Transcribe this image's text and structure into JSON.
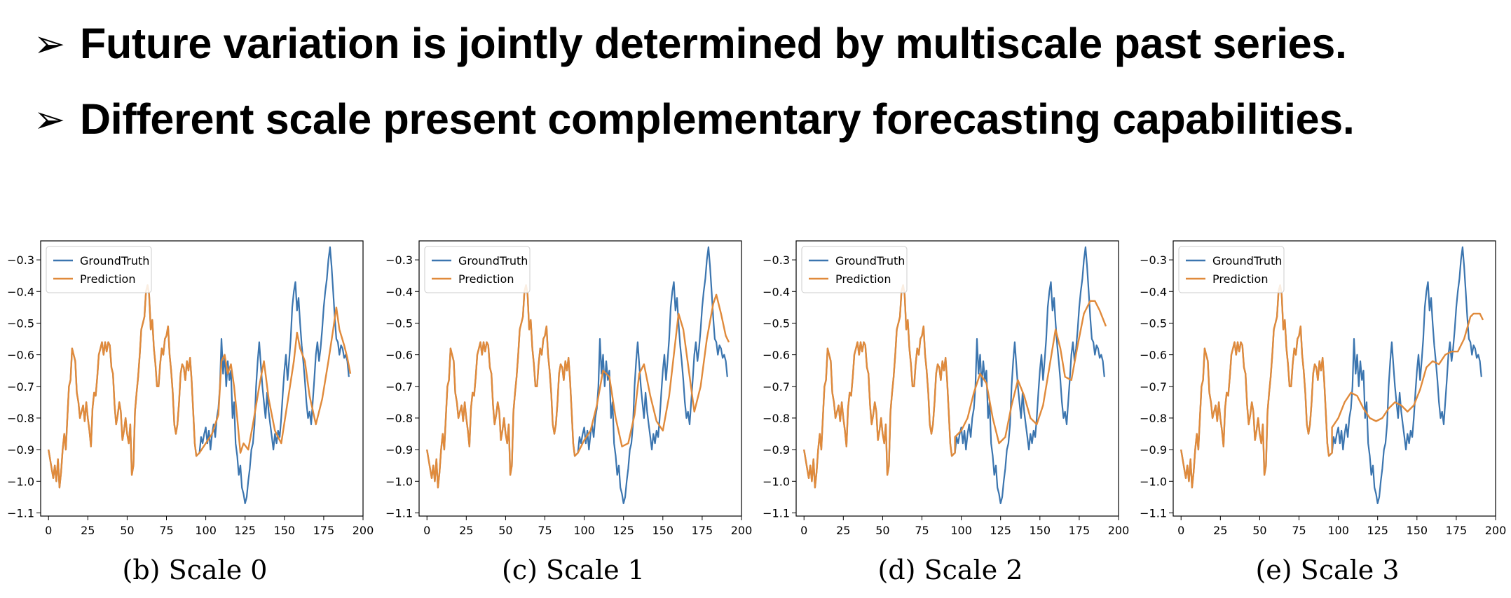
{
  "bullets": [
    {
      "marker": "➢",
      "text": "Future variation is jointly determined by multiscale past series."
    },
    {
      "marker": "➢",
      "text": "Different scale present complementary forecasting capabilities."
    }
  ],
  "colors": {
    "groundtruth": "#3b75af",
    "prediction": "#e08a3b"
  },
  "chart_data": [
    {
      "type": "line",
      "caption": "(b) Scale 0",
      "xlim": [
        -5,
        200
      ],
      "ylim": [
        -1.11,
        -0.24
      ],
      "xticks": [
        0,
        25,
        50,
        75,
        100,
        125,
        150,
        175,
        200
      ],
      "yticks": [
        -0.3,
        -0.4,
        -0.5,
        -0.6,
        -0.7,
        -0.8,
        -0.9,
        -1.0,
        -1.1
      ],
      "legend": "top-left",
      "series": [
        {
          "name": "GroundTruth"
        },
        {
          "name": "Prediction",
          "points": [
            [
              96,
              -0.91
            ],
            [
              100,
              -0.88
            ],
            [
              104,
              -0.85
            ],
            [
              108,
              -0.79
            ],
            [
              110,
              -0.62
            ],
            [
              112,
              -0.6
            ],
            [
              114,
              -0.66
            ],
            [
              116,
              -0.63
            ],
            [
              118,
              -0.7
            ],
            [
              120,
              -0.8
            ],
            [
              122,
              -0.91
            ],
            [
              124,
              -0.88
            ],
            [
              127,
              -0.9
            ],
            [
              130,
              -0.82
            ],
            [
              134,
              -0.7
            ],
            [
              137,
              -0.62
            ],
            [
              140,
              -0.74
            ],
            [
              144,
              -0.84
            ],
            [
              148,
              -0.88
            ],
            [
              152,
              -0.75
            ],
            [
              156,
              -0.62
            ],
            [
              158,
              -0.53
            ],
            [
              160,
              -0.58
            ],
            [
              163,
              -0.62
            ],
            [
              166,
              -0.73
            ],
            [
              170,
              -0.82
            ],
            [
              174,
              -0.74
            ],
            [
              178,
              -0.62
            ],
            [
              181,
              -0.52
            ],
            [
              183,
              -0.45
            ],
            [
              185,
              -0.52
            ],
            [
              188,
              -0.57
            ],
            [
              190,
              -0.61
            ],
            [
              192,
              -0.66
            ]
          ]
        }
      ]
    },
    {
      "type": "line",
      "caption": "(c) Scale 1",
      "xlim": [
        -5,
        200
      ],
      "ylim": [
        -1.11,
        -0.24
      ],
      "xticks": [
        0,
        25,
        50,
        75,
        100,
        125,
        150,
        175,
        200
      ],
      "yticks": [
        -0.3,
        -0.4,
        -0.5,
        -0.6,
        -0.7,
        -0.8,
        -0.9,
        -1.0,
        -1.1
      ],
      "legend": "top-left",
      "series": [
        {
          "name": "GroundTruth"
        },
        {
          "name": "Prediction",
          "points": [
            [
              96,
              -0.91
            ],
            [
              100,
              -0.87
            ],
            [
              104,
              -0.84
            ],
            [
              108,
              -0.76
            ],
            [
              112,
              -0.65
            ],
            [
              116,
              -0.67
            ],
            [
              120,
              -0.8
            ],
            [
              124,
              -0.89
            ],
            [
              128,
              -0.88
            ],
            [
              132,
              -0.79
            ],
            [
              135,
              -0.66
            ],
            [
              138,
              -0.63
            ],
            [
              142,
              -0.73
            ],
            [
              146,
              -0.81
            ],
            [
              150,
              -0.84
            ],
            [
              154,
              -0.73
            ],
            [
              157,
              -0.6
            ],
            [
              160,
              -0.47
            ],
            [
              163,
              -0.52
            ],
            [
              166,
              -0.63
            ],
            [
              170,
              -0.78
            ],
            [
              174,
              -0.7
            ],
            [
              178,
              -0.55
            ],
            [
              182,
              -0.44
            ],
            [
              184,
              -0.41
            ],
            [
              187,
              -0.47
            ],
            [
              190,
              -0.54
            ],
            [
              192,
              -0.56
            ]
          ]
        }
      ]
    },
    {
      "type": "line",
      "caption": "(d) Scale 2",
      "xlim": [
        -5,
        200
      ],
      "ylim": [
        -1.11,
        -0.24
      ],
      "xticks": [
        0,
        25,
        50,
        75,
        100,
        125,
        150,
        175,
        200
      ],
      "yticks": [
        -0.3,
        -0.4,
        -0.5,
        -0.6,
        -0.7,
        -0.8,
        -0.9,
        -1.0,
        -1.1
      ],
      "legend": "top-left",
      "series": [
        {
          "name": "GroundTruth"
        },
        {
          "name": "Prediction",
          "points": [
            [
              96,
              -0.86
            ],
            [
              100,
              -0.84
            ],
            [
              104,
              -0.8
            ],
            [
              108,
              -0.72
            ],
            [
              112,
              -0.66
            ],
            [
              116,
              -0.69
            ],
            [
              120,
              -0.8
            ],
            [
              124,
              -0.88
            ],
            [
              128,
              -0.86
            ],
            [
              132,
              -0.76
            ],
            [
              136,
              -0.68
            ],
            [
              140,
              -0.73
            ],
            [
              144,
              -0.8
            ],
            [
              148,
              -0.82
            ],
            [
              152,
              -0.76
            ],
            [
              156,
              -0.64
            ],
            [
              160,
              -0.52
            ],
            [
              163,
              -0.58
            ],
            [
              166,
              -0.67
            ],
            [
              170,
              -0.68
            ],
            [
              174,
              -0.57
            ],
            [
              178,
              -0.47
            ],
            [
              182,
              -0.43
            ],
            [
              185,
              -0.43
            ],
            [
              188,
              -0.46
            ],
            [
              192,
              -0.51
            ]
          ]
        }
      ]
    },
    {
      "type": "line",
      "caption": "(e) Scale 3",
      "xlim": [
        -5,
        200
      ],
      "ylim": [
        -1.11,
        -0.24
      ],
      "xticks": [
        0,
        25,
        50,
        75,
        100,
        125,
        150,
        175,
        200
      ],
      "yticks": [
        -0.3,
        -0.4,
        -0.5,
        -0.6,
        -0.7,
        -0.8,
        -0.9,
        -1.0,
        -1.1
      ],
      "legend": "top-left",
      "series": [
        {
          "name": "GroundTruth"
        },
        {
          "name": "Prediction",
          "points": [
            [
              96,
              -0.83
            ],
            [
              100,
              -0.8
            ],
            [
              104,
              -0.75
            ],
            [
              108,
              -0.72
            ],
            [
              112,
              -0.73
            ],
            [
              116,
              -0.77
            ],
            [
              120,
              -0.8
            ],
            [
              124,
              -0.81
            ],
            [
              128,
              -0.8
            ],
            [
              132,
              -0.77
            ],
            [
              136,
              -0.75
            ],
            [
              140,
              -0.76
            ],
            [
              144,
              -0.78
            ],
            [
              148,
              -0.76
            ],
            [
              152,
              -0.71
            ],
            [
              156,
              -0.64
            ],
            [
              160,
              -0.62
            ],
            [
              164,
              -0.63
            ],
            [
              168,
              -0.6
            ],
            [
              172,
              -0.59
            ],
            [
              176,
              -0.59
            ],
            [
              180,
              -0.55
            ],
            [
              184,
              -0.48
            ],
            [
              186,
              -0.47
            ],
            [
              190,
              -0.47
            ],
            [
              192,
              -0.49
            ]
          ]
        }
      ]
    }
  ],
  "history_points": [
    [
      0,
      -0.9
    ],
    [
      2,
      -0.96
    ],
    [
      3,
      -0.99
    ],
    [
      4,
      -0.95
    ],
    [
      5,
      -1.0
    ],
    [
      6,
      -0.93
    ],
    [
      7,
      -1.02
    ],
    [
      8,
      -0.97
    ],
    [
      9,
      -0.9
    ],
    [
      10,
      -0.85
    ],
    [
      11,
      -0.9
    ],
    [
      12,
      -0.8
    ],
    [
      13,
      -0.7
    ],
    [
      14,
      -0.68
    ],
    [
      15,
      -0.58
    ],
    [
      16,
      -0.6
    ],
    [
      17,
      -0.62
    ],
    [
      18,
      -0.72
    ],
    [
      19,
      -0.75
    ],
    [
      20,
      -0.8
    ],
    [
      21,
      -0.78
    ],
    [
      22,
      -0.76
    ],
    [
      23,
      -0.81
    ],
    [
      24,
      -0.75
    ],
    [
      25,
      -0.8
    ],
    [
      26,
      -0.84
    ],
    [
      27,
      -0.89
    ],
    [
      28,
      -0.77
    ],
    [
      29,
      -0.72
    ],
    [
      30,
      -0.73
    ],
    [
      31,
      -0.67
    ],
    [
      32,
      -0.6
    ],
    [
      33,
      -0.58
    ],
    [
      34,
      -0.56
    ],
    [
      35,
      -0.6
    ],
    [
      36,
      -0.56
    ],
    [
      37,
      -0.59
    ],
    [
      38,
      -0.56
    ],
    [
      39,
      -0.57
    ],
    [
      40,
      -0.64
    ],
    [
      41,
      -0.66
    ],
    [
      42,
      -0.76
    ],
    [
      43,
      -0.82
    ],
    [
      44,
      -0.79
    ],
    [
      45,
      -0.75
    ],
    [
      46,
      -0.78
    ],
    [
      47,
      -0.87
    ],
    [
      48,
      -0.84
    ],
    [
      49,
      -0.8
    ],
    [
      50,
      -0.85
    ],
    [
      51,
      -0.88
    ],
    [
      52,
      -0.82
    ],
    [
      53,
      -0.98
    ],
    [
      54,
      -0.95
    ],
    [
      55,
      -0.78
    ],
    [
      56,
      -0.72
    ],
    [
      57,
      -0.67
    ],
    [
      58,
      -0.6
    ],
    [
      59,
      -0.52
    ],
    [
      60,
      -0.5
    ],
    [
      61,
      -0.48
    ],
    [
      62,
      -0.4
    ],
    [
      63,
      -0.38
    ],
    [
      64,
      -0.41
    ],
    [
      65,
      -0.52
    ],
    [
      66,
      -0.49
    ],
    [
      67,
      -0.58
    ],
    [
      68,
      -0.63
    ],
    [
      69,
      -0.7
    ],
    [
      70,
      -0.7
    ],
    [
      71,
      -0.63
    ],
    [
      72,
      -0.58
    ],
    [
      73,
      -0.6
    ],
    [
      74,
      -0.55
    ],
    [
      75,
      -0.54
    ],
    [
      76,
      -0.51
    ],
    [
      77,
      -0.6
    ],
    [
      78,
      -0.65
    ],
    [
      79,
      -0.72
    ],
    [
      80,
      -0.82
    ],
    [
      81,
      -0.85
    ],
    [
      82,
      -0.82
    ],
    [
      83,
      -0.75
    ],
    [
      84,
      -0.66
    ],
    [
      85,
      -0.63
    ],
    [
      86,
      -0.64
    ],
    [
      87,
      -0.68
    ],
    [
      88,
      -0.62
    ],
    [
      89,
      -0.65
    ],
    [
      90,
      -0.61
    ],
    [
      91,
      -0.68
    ],
    [
      92,
      -0.78
    ],
    [
      93,
      -0.88
    ],
    [
      94,
      -0.92
    ],
    [
      96,
      -0.91
    ]
  ],
  "groundtruth_future": [
    [
      96,
      -0.91
    ],
    [
      97,
      -0.86
    ],
    [
      98,
      -0.88
    ],
    [
      99,
      -0.85
    ],
    [
      100,
      -0.83
    ],
    [
      101,
      -0.88
    ],
    [
      102,
      -0.84
    ],
    [
      103,
      -0.9
    ],
    [
      104,
      -0.85
    ],
    [
      105,
      -0.82
    ],
    [
      106,
      -0.86
    ],
    [
      107,
      -0.8
    ],
    [
      108,
      -0.77
    ],
    [
      109,
      -0.7
    ],
    [
      110,
      -0.55
    ],
    [
      111,
      -0.66
    ],
    [
      112,
      -0.6
    ],
    [
      113,
      -0.7
    ],
    [
      114,
      -0.62
    ],
    [
      115,
      -0.68
    ],
    [
      116,
      -0.65
    ],
    [
      117,
      -0.8
    ],
    [
      118,
      -0.75
    ],
    [
      119,
      -0.88
    ],
    [
      120,
      -0.92
    ],
    [
      121,
      -0.98
    ],
    [
      122,
      -0.95
    ],
    [
      123,
      -1.02
    ],
    [
      124,
      -1.04
    ],
    [
      125,
      -1.07
    ],
    [
      126,
      -1.05
    ],
    [
      127,
      -1.0
    ],
    [
      128,
      -0.96
    ],
    [
      129,
      -0.9
    ],
    [
      130,
      -0.88
    ],
    [
      131,
      -0.82
    ],
    [
      132,
      -0.7
    ],
    [
      133,
      -0.62
    ],
    [
      134,
      -0.56
    ],
    [
      135,
      -0.63
    ],
    [
      136,
      -0.7
    ],
    [
      137,
      -0.75
    ],
    [
      138,
      -0.8
    ],
    [
      139,
      -0.72
    ],
    [
      140,
      -0.78
    ],
    [
      141,
      -0.82
    ],
    [
      142,
      -0.86
    ],
    [
      143,
      -0.9
    ],
    [
      144,
      -0.85
    ],
    [
      145,
      -0.88
    ],
    [
      146,
      -0.84
    ],
    [
      147,
      -0.86
    ],
    [
      148,
      -0.8
    ],
    [
      149,
      -0.72
    ],
    [
      150,
      -0.65
    ],
    [
      151,
      -0.6
    ],
    [
      152,
      -0.68
    ],
    [
      153,
      -0.62
    ],
    [
      154,
      -0.55
    ],
    [
      155,
      -0.45
    ],
    [
      156,
      -0.4
    ],
    [
      157,
      -0.37
    ],
    [
      158,
      -0.46
    ],
    [
      159,
      -0.42
    ],
    [
      160,
      -0.5
    ],
    [
      161,
      -0.57
    ],
    [
      162,
      -0.62
    ],
    [
      163,
      -0.68
    ],
    [
      164,
      -0.75
    ],
    [
      165,
      -0.8
    ],
    [
      166,
      -0.78
    ],
    [
      167,
      -0.82
    ],
    [
      168,
      -0.75
    ],
    [
      169,
      -0.68
    ],
    [
      170,
      -0.6
    ],
    [
      171,
      -0.56
    ],
    [
      172,
      -0.62
    ],
    [
      173,
      -0.58
    ],
    [
      174,
      -0.52
    ],
    [
      175,
      -0.45
    ],
    [
      176,
      -0.4
    ],
    [
      177,
      -0.36
    ],
    [
      178,
      -0.3
    ],
    [
      179,
      -0.26
    ],
    [
      180,
      -0.32
    ],
    [
      181,
      -0.4
    ],
    [
      182,
      -0.48
    ],
    [
      183,
      -0.55
    ],
    [
      184,
      -0.56
    ],
    [
      185,
      -0.6
    ],
    [
      186,
      -0.57
    ],
    [
      187,
      -0.58
    ],
    [
      188,
      -0.61
    ],
    [
      189,
      -0.6
    ],
    [
      190,
      -0.62
    ],
    [
      191,
      -0.67
    ]
  ]
}
